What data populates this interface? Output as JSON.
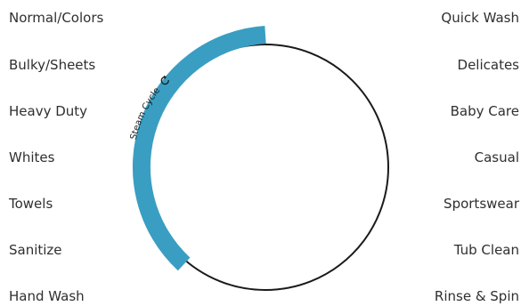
{
  "dial": {
    "arc_label": "Steam Cycle",
    "arc_icon": "steam-cycle-icon",
    "arc_color": "#3a9ec2",
    "outline_color": "#1a1a1a"
  },
  "left_cycles": [
    {
      "label": "Normal/Colors"
    },
    {
      "label": "Bulky/Sheets"
    },
    {
      "label": "Heavy Duty"
    },
    {
      "label": "Whites"
    },
    {
      "label": "Towels"
    },
    {
      "label": "Sanitize"
    },
    {
      "label": "Hand Wash"
    }
  ],
  "right_cycles": [
    {
      "label": "Quick Wash"
    },
    {
      "label": "Delicates"
    },
    {
      "label": "Baby Care"
    },
    {
      "label": "Casual"
    },
    {
      "label": "Sportswear"
    },
    {
      "label": "Tub Clean"
    },
    {
      "label": "Rinse & Spin"
    }
  ]
}
